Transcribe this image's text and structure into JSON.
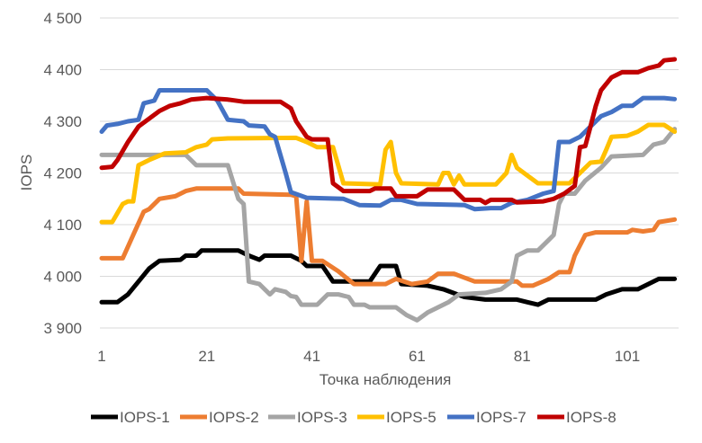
{
  "chart_data": {
    "type": "line",
    "title": "",
    "xlabel": "Точка наблюдения",
    "ylabel": "IOPS",
    "xlim": [
      1,
      110
    ],
    "ylim": [
      3900,
      4500
    ],
    "x_ticks": [
      1,
      21,
      41,
      61,
      81,
      101
    ],
    "y_ticks": [
      3900,
      4000,
      4100,
      4200,
      4300,
      4400,
      4500
    ],
    "y_tick_labels": [
      "3 900",
      "4 000",
      "4 100",
      "4 200",
      "4 300",
      "4 400",
      "4 500"
    ],
    "grid": "horizontal",
    "legend_position": "bottom",
    "series": [
      {
        "name": "IOPS-1",
        "color": "#000000",
        "points": [
          [
            1,
            3950
          ],
          [
            4,
            3950
          ],
          [
            6,
            3965
          ],
          [
            8,
            3990
          ],
          [
            10,
            4015
          ],
          [
            12,
            4030
          ],
          [
            16,
            4032
          ],
          [
            17,
            4040
          ],
          [
            19,
            4040
          ],
          [
            20,
            4050
          ],
          [
            27,
            4050
          ],
          [
            29,
            4040
          ],
          [
            31,
            4032
          ],
          [
            32,
            4040
          ],
          [
            37,
            4040
          ],
          [
            39,
            4030
          ],
          [
            40,
            4020
          ],
          [
            43,
            4020
          ],
          [
            45,
            3990
          ],
          [
            52,
            3990
          ],
          [
            54,
            4020
          ],
          [
            57,
            4020
          ],
          [
            58,
            3985
          ],
          [
            63,
            3982
          ],
          [
            66,
            3975
          ],
          [
            70,
            3960
          ],
          [
            74,
            3955
          ],
          [
            80,
            3955
          ],
          [
            82,
            3950
          ],
          [
            84,
            3945
          ],
          [
            86,
            3955
          ],
          [
            95,
            3955
          ],
          [
            97,
            3965
          ],
          [
            100,
            3975
          ],
          [
            103,
            3975
          ],
          [
            105,
            3985
          ],
          [
            107,
            3995
          ],
          [
            110,
            3995
          ]
        ]
      },
      {
        "name": "IOPS-2",
        "color": "#ED7D31",
        "points": [
          [
            1,
            4035
          ],
          [
            5,
            4035
          ],
          [
            7,
            4080
          ],
          [
            9,
            4125
          ],
          [
            10,
            4130
          ],
          [
            12,
            4150
          ],
          [
            15,
            4155
          ],
          [
            17,
            4165
          ],
          [
            19,
            4170
          ],
          [
            27,
            4170
          ],
          [
            28,
            4160
          ],
          [
            37,
            4158
          ],
          [
            38,
            4155
          ],
          [
            39,
            4030
          ],
          [
            40,
            4145
          ],
          [
            41,
            4030
          ],
          [
            43,
            4030
          ],
          [
            46,
            4010
          ],
          [
            49,
            3985
          ],
          [
            55,
            3985
          ],
          [
            57,
            3995
          ],
          [
            60,
            3985
          ],
          [
            63,
            3990
          ],
          [
            65,
            4005
          ],
          [
            68,
            4005
          ],
          [
            72,
            3990
          ],
          [
            80,
            3990
          ],
          [
            81,
            3982
          ],
          [
            83,
            3982
          ],
          [
            86,
            3995
          ],
          [
            88,
            4008
          ],
          [
            90,
            4008
          ],
          [
            91,
            4040
          ],
          [
            93,
            4080
          ],
          [
            95,
            4085
          ],
          [
            101,
            4085
          ],
          [
            102,
            4090
          ],
          [
            104,
            4087
          ],
          [
            106,
            4090
          ],
          [
            107,
            4105
          ],
          [
            110,
            4110
          ]
        ]
      },
      {
        "name": "IOPS-3",
        "color": "#A5A5A5",
        "points": [
          [
            1,
            4235
          ],
          [
            17,
            4235
          ],
          [
            19,
            4215
          ],
          [
            25,
            4215
          ],
          [
            27,
            4150
          ],
          [
            28,
            4140
          ],
          [
            29,
            3990
          ],
          [
            31,
            3985
          ],
          [
            33,
            3965
          ],
          [
            34,
            3975
          ],
          [
            36,
            3970
          ],
          [
            37,
            3962
          ],
          [
            38,
            3960
          ],
          [
            39,
            3945
          ],
          [
            42,
            3945
          ],
          [
            44,
            3965
          ],
          [
            46,
            3965
          ],
          [
            48,
            3960
          ],
          [
            49,
            3945
          ],
          [
            51,
            3945
          ],
          [
            52,
            3940
          ],
          [
            57,
            3940
          ],
          [
            59,
            3925
          ],
          [
            61,
            3915
          ],
          [
            63,
            3930
          ],
          [
            66,
            3945
          ],
          [
            67,
            3950
          ],
          [
            69,
            3965
          ],
          [
            74,
            3968
          ],
          [
            77,
            3975
          ],
          [
            79,
            3990
          ],
          [
            80,
            4040
          ],
          [
            82,
            4050
          ],
          [
            84,
            4050
          ],
          [
            86,
            4070
          ],
          [
            87,
            4080
          ],
          [
            88,
            4140
          ],
          [
            89,
            4160
          ],
          [
            91,
            4160
          ],
          [
            93,
            4185
          ],
          [
            96,
            4210
          ],
          [
            98,
            4232
          ],
          [
            104,
            4235
          ],
          [
            106,
            4255
          ],
          [
            108,
            4260
          ],
          [
            110,
            4285
          ]
        ]
      },
      {
        "name": "IOPS-5",
        "color": "#FFC000",
        "points": [
          [
            1,
            4105
          ],
          [
            3,
            4105
          ],
          [
            5,
            4140
          ],
          [
            6,
            4145
          ],
          [
            7,
            4145
          ],
          [
            8,
            4215
          ],
          [
            10,
            4225
          ],
          [
            13,
            4238
          ],
          [
            17,
            4240
          ],
          [
            19,
            4250
          ],
          [
            21,
            4255
          ],
          [
            22,
            4265
          ],
          [
            25,
            4267
          ],
          [
            38,
            4268
          ],
          [
            40,
            4260
          ],
          [
            42,
            4250
          ],
          [
            45,
            4250
          ],
          [
            47,
            4180
          ],
          [
            54,
            4178
          ],
          [
            55,
            4245
          ],
          [
            56,
            4260
          ],
          [
            57,
            4200
          ],
          [
            58,
            4180
          ],
          [
            65,
            4178
          ],
          [
            66,
            4200
          ],
          [
            67,
            4200
          ],
          [
            68,
            4178
          ],
          [
            69,
            4195
          ],
          [
            70,
            4178
          ],
          [
            76,
            4178
          ],
          [
            78,
            4200
          ],
          [
            79,
            4235
          ],
          [
            80,
            4210
          ],
          [
            82,
            4195
          ],
          [
            84,
            4180
          ],
          [
            90,
            4180
          ],
          [
            92,
            4200
          ],
          [
            94,
            4220
          ],
          [
            96,
            4222
          ],
          [
            97,
            4245
          ],
          [
            98,
            4270
          ],
          [
            101,
            4272
          ],
          [
            103,
            4280
          ],
          [
            105,
            4293
          ],
          [
            108,
            4293
          ],
          [
            110,
            4280
          ]
        ]
      },
      {
        "name": "IOPS-7",
        "color": "#4472C4",
        "points": [
          [
            1,
            4280
          ],
          [
            2,
            4292
          ],
          [
            4,
            4295
          ],
          [
            6,
            4300
          ],
          [
            8,
            4303
          ],
          [
            9,
            4335
          ],
          [
            11,
            4340
          ],
          [
            12,
            4360
          ],
          [
            21,
            4360
          ],
          [
            23,
            4340
          ],
          [
            25,
            4303
          ],
          [
            28,
            4300
          ],
          [
            29,
            4292
          ],
          [
            32,
            4290
          ],
          [
            33,
            4275
          ],
          [
            34,
            4270
          ],
          [
            36,
            4200
          ],
          [
            37,
            4163
          ],
          [
            40,
            4152
          ],
          [
            47,
            4150
          ],
          [
            50,
            4138
          ],
          [
            54,
            4137
          ],
          [
            56,
            4148
          ],
          [
            58,
            4148
          ],
          [
            61,
            4140
          ],
          [
            70,
            4138
          ],
          [
            72,
            4130
          ],
          [
            75,
            4132
          ],
          [
            77,
            4132
          ],
          [
            79,
            4142
          ],
          [
            82,
            4148
          ],
          [
            85,
            4160
          ],
          [
            87,
            4165
          ],
          [
            88,
            4260
          ],
          [
            90,
            4260
          ],
          [
            92,
            4270
          ],
          [
            94,
            4290
          ],
          [
            96,
            4310
          ],
          [
            98,
            4318
          ],
          [
            100,
            4330
          ],
          [
            102,
            4330
          ],
          [
            104,
            4345
          ],
          [
            108,
            4345
          ],
          [
            110,
            4343
          ]
        ]
      },
      {
        "name": "IOPS-8",
        "color": "#C00000",
        "points": [
          [
            1,
            4210
          ],
          [
            3,
            4212
          ],
          [
            4,
            4225
          ],
          [
            6,
            4260
          ],
          [
            8,
            4290
          ],
          [
            10,
            4305
          ],
          [
            12,
            4320
          ],
          [
            14,
            4330
          ],
          [
            16,
            4335
          ],
          [
            18,
            4342
          ],
          [
            21,
            4345
          ],
          [
            25,
            4342
          ],
          [
            28,
            4338
          ],
          [
            35,
            4338
          ],
          [
            37,
            4325
          ],
          [
            38,
            4300
          ],
          [
            40,
            4270
          ],
          [
            41,
            4265
          ],
          [
            44,
            4265
          ],
          [
            45,
            4180
          ],
          [
            47,
            4165
          ],
          [
            52,
            4165
          ],
          [
            53,
            4170
          ],
          [
            56,
            4170
          ],
          [
            57,
            4155
          ],
          [
            61,
            4155
          ],
          [
            63,
            4168
          ],
          [
            68,
            4168
          ],
          [
            70,
            4148
          ],
          [
            73,
            4148
          ],
          [
            74,
            4142
          ],
          [
            75,
            4148
          ],
          [
            79,
            4148
          ],
          [
            80,
            4143
          ],
          [
            85,
            4145
          ],
          [
            87,
            4150
          ],
          [
            89,
            4160
          ],
          [
            91,
            4175
          ],
          [
            92,
            4250
          ],
          [
            93,
            4252
          ],
          [
            94,
            4290
          ],
          [
            95,
            4330
          ],
          [
            96,
            4360
          ],
          [
            98,
            4385
          ],
          [
            100,
            4395
          ],
          [
            103,
            4395
          ],
          [
            105,
            4403
          ],
          [
            107,
            4408
          ],
          [
            108,
            4418
          ],
          [
            110,
            4420
          ]
        ]
      }
    ]
  }
}
